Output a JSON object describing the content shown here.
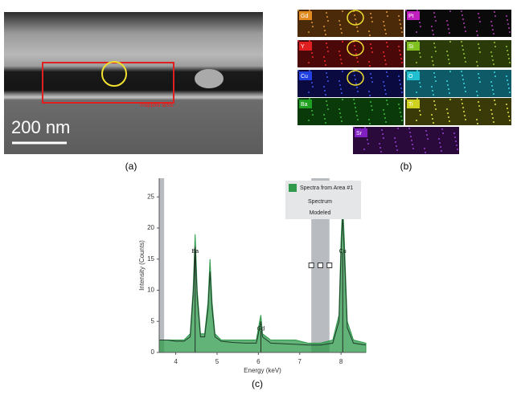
{
  "panel_a": {
    "label": "(a)",
    "scale_bar": "200 nm",
    "region_label": "mapped area"
  },
  "panel_b": {
    "label": "(b)",
    "maps": [
      "Gd",
      "Pt",
      "Y",
      "Si",
      "Cu",
      "O",
      "Ba",
      "Ti",
      "Sr"
    ]
  },
  "chart_data": {
    "type": "area",
    "panel_label": "(c)",
    "xlabel": "Energy (keV)",
    "ylabel": "Intensity (Counts)",
    "xlim": [
      3.6,
      8.6
    ],
    "ylim": [
      0,
      28
    ],
    "xticks": [
      4,
      5,
      6,
      7,
      8
    ],
    "yticks": [
      0,
      5,
      10,
      15,
      20,
      25
    ],
    "x": [
      3.6,
      3.8,
      4.0,
      4.2,
      4.35,
      4.42,
      4.47,
      4.52,
      4.6,
      4.7,
      4.78,
      4.83,
      4.88,
      4.95,
      5.1,
      5.4,
      5.7,
      5.95,
      6.03,
      6.06,
      6.1,
      6.3,
      6.6,
      6.9,
      7.2,
      7.5,
      7.8,
      7.95,
      8.0,
      8.04,
      8.08,
      8.15,
      8.3,
      8.6
    ],
    "series": [
      {
        "name": "Spectra from Area #1",
        "color": "#2e9a4a",
        "values": [
          2,
          2,
          2,
          2,
          3,
          10,
          19,
          10,
          3,
          3,
          8,
          15,
          8,
          3,
          2,
          2,
          2,
          2,
          5,
          6,
          3,
          2,
          2,
          2,
          1.5,
          1.5,
          2,
          6,
          18,
          24,
          18,
          5,
          2,
          1.5
        ]
      },
      {
        "name": "Modeled",
        "color": "#1f3d2a",
        "values": [
          2,
          2,
          1.8,
          1.8,
          2.5,
          9,
          17,
          9,
          2.5,
          2.5,
          7,
          13,
          7,
          2.5,
          1.8,
          1.6,
          1.5,
          1.5,
          4,
          5,
          2.5,
          1.5,
          1.4,
          1.3,
          1.2,
          1.2,
          1.5,
          5,
          16,
          22,
          16,
          4,
          1.5,
          1.2
        ]
      }
    ],
    "legend_items": [
      "Spectrum",
      "Modeled"
    ],
    "shaded_ranges": [
      [
        3.6,
        3.72
      ],
      [
        7.28,
        7.72
      ]
    ],
    "annotations": [
      {
        "label": "Ba",
        "x": 4.47,
        "y": 16
      },
      {
        "label": "Gd",
        "x": 6.06,
        "y": 3.5
      },
      {
        "label": "Cu",
        "x": 8.04,
        "y": 16
      }
    ]
  }
}
